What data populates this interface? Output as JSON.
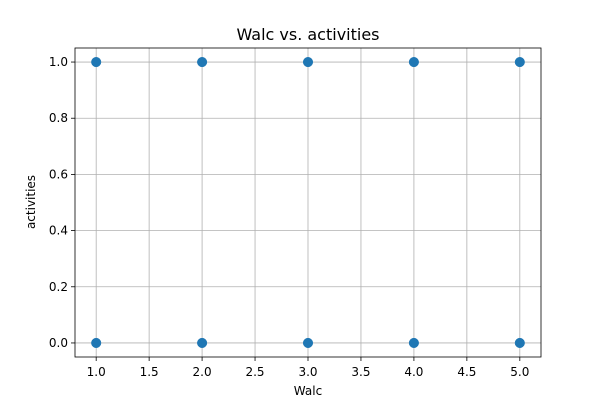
{
  "chart_data": {
    "type": "scatter",
    "title": "Walc vs. activities",
    "xlabel": "Walc",
    "ylabel": "activities",
    "xlim": [
      0.8,
      5.2
    ],
    "ylim": [
      -0.05,
      1.05
    ],
    "xticks": [
      1.0,
      1.5,
      2.0,
      2.5,
      3.0,
      3.5,
      4.0,
      4.5,
      5.0
    ],
    "xtick_labels": [
      "1.0",
      "1.5",
      "2.0",
      "2.5",
      "3.0",
      "3.5",
      "4.0",
      "4.5",
      "5.0"
    ],
    "yticks": [
      0.0,
      0.2,
      0.4,
      0.6,
      0.8,
      1.0
    ],
    "ytick_labels": [
      "0.0",
      "0.2",
      "0.4",
      "0.6",
      "0.8",
      "1.0"
    ],
    "grid": true,
    "marker_color": "#1f77b4",
    "points": [
      {
        "x": 1,
        "y": 1
      },
      {
        "x": 2,
        "y": 1
      },
      {
        "x": 3,
        "y": 1
      },
      {
        "x": 4,
        "y": 1
      },
      {
        "x": 5,
        "y": 1
      },
      {
        "x": 1,
        "y": 0
      },
      {
        "x": 2,
        "y": 0
      },
      {
        "x": 3,
        "y": 0
      },
      {
        "x": 4,
        "y": 0
      },
      {
        "x": 5,
        "y": 0
      }
    ]
  }
}
